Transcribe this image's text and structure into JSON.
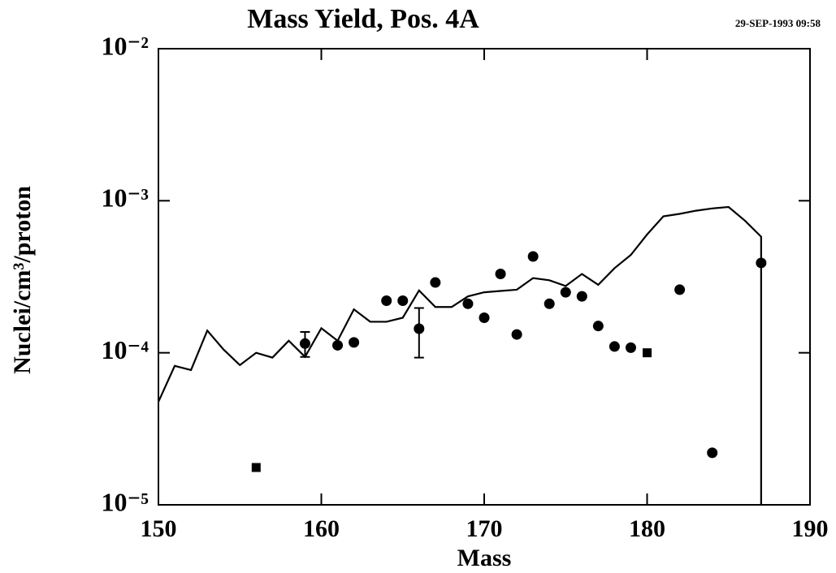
{
  "chart_data": {
    "type": "line_scatter",
    "title": "Mass Yield, Pos. 4A",
    "date": "29-SEP-1993 09:58",
    "xlabel": "Mass",
    "ylabel": "Nuclei/cm³/proton",
    "xlim": [
      150,
      190
    ],
    "ylim": [
      1e-05,
      0.01
    ],
    "log_y": true,
    "xticks": [
      150,
      160,
      170,
      180,
      190
    ],
    "yticks": [
      {
        "value": 1e-05,
        "label": "10⁻⁵"
      },
      {
        "value": 0.0001,
        "label": "10⁻⁴"
      },
      {
        "value": 0.001,
        "label": "10⁻³"
      },
      {
        "value": 0.01,
        "label": "10⁻²"
      }
    ],
    "line": {
      "color": "#000000",
      "x": [
        150,
        151,
        152,
        153,
        154,
        155,
        156,
        157,
        158,
        159,
        160,
        161,
        162,
        163,
        164,
        165,
        166,
        167,
        168,
        169,
        170,
        171,
        172,
        173,
        174,
        175,
        176,
        177,
        178,
        179,
        180,
        181,
        182,
        183,
        184,
        185,
        186,
        187,
        187
      ],
      "values": [
        4.76e-05,
        8.2e-05,
        7.7e-05,
        0.00014,
        0.000105,
        8.3e-05,
        0.0001,
        9.3e-05,
        0.00012,
        9.4e-05,
        0.000145,
        0.00012,
        0.000193,
        0.00016,
        0.00016,
        0.00017,
        0.000257,
        0.0002,
        0.0002,
        0.000235,
        0.00025,
        0.000255,
        0.00026,
        0.00031,
        0.0003,
        0.000275,
        0.00033,
        0.00028,
        0.00036,
        0.00044,
        0.0006,
        0.00079,
        0.00082,
        0.00086,
        0.00089,
        0.00091,
        0.00074,
        0.00058,
        1e-05
      ]
    },
    "circles": {
      "color": "#000000",
      "x": [
        159,
        161,
        162,
        164,
        165,
        166,
        167,
        169,
        170,
        171,
        172,
        173,
        174,
        175,
        176,
        177,
        178,
        179,
        182,
        184,
        187
      ],
      "values": [
        0.000115,
        0.000112,
        0.000117,
        0.00022,
        0.00022,
        0.000144,
        0.00029,
        0.00021,
        0.00017,
        0.00033,
        0.000132,
        0.00043,
        0.00021,
        0.00025,
        0.000235,
        0.00015,
        0.00011,
        0.000108,
        0.00026,
        2.2e-05,
        0.00039
      ]
    },
    "squares": {
      "color": "#000000",
      "x": [
        156,
        180
      ],
      "values": [
        1.76e-05,
        0.0001
      ]
    },
    "error_bars": {
      "x": [
        159,
        166
      ],
      "low": [
        9.4e-05,
        9.3e-05
      ],
      "high": [
        0.000137,
        0.000197
      ]
    }
  }
}
